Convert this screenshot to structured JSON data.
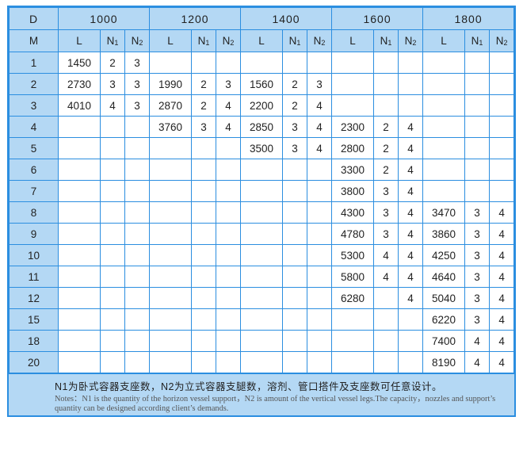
{
  "header": {
    "d_label": "D",
    "m_label": "M",
    "diameters": [
      "1000",
      "1200",
      "1400",
      "1600",
      "1800"
    ],
    "sub_headers": {
      "l": "L",
      "n1": "N",
      "n1_sub": "1",
      "n2": "N",
      "n2_sub": "2"
    }
  },
  "rows": [
    {
      "m": "1",
      "cells": [
        [
          "1450",
          "2",
          "3"
        ],
        [
          "",
          "",
          ""
        ],
        [
          "",
          "",
          ""
        ],
        [
          "",
          "",
          ""
        ],
        [
          "",
          "",
          ""
        ]
      ]
    },
    {
      "m": "2",
      "cells": [
        [
          "2730",
          "3",
          "3"
        ],
        [
          "1990",
          "2",
          "3"
        ],
        [
          "1560",
          "2",
          "3"
        ],
        [
          "",
          "",
          ""
        ],
        [
          "",
          "",
          ""
        ]
      ]
    },
    {
      "m": "3",
      "cells": [
        [
          "4010",
          "4",
          "3"
        ],
        [
          "2870",
          "2",
          "4"
        ],
        [
          "2200",
          "2",
          "4"
        ],
        [
          "",
          "",
          ""
        ],
        [
          "",
          "",
          ""
        ]
      ]
    },
    {
      "m": "4",
      "cells": [
        [
          "",
          "",
          ""
        ],
        [
          "3760",
          "3",
          "4"
        ],
        [
          "2850",
          "3",
          "4"
        ],
        [
          "2300",
          "2",
          "4"
        ],
        [
          "",
          "",
          ""
        ]
      ]
    },
    {
      "m": "5",
      "cells": [
        [
          "",
          "",
          ""
        ],
        [
          "",
          "",
          ""
        ],
        [
          "3500",
          "3",
          "4"
        ],
        [
          "2800",
          "2",
          "4"
        ],
        [
          "",
          "",
          ""
        ]
      ]
    },
    {
      "m": "6",
      "cells": [
        [
          "",
          "",
          ""
        ],
        [
          "",
          "",
          ""
        ],
        [
          "",
          "",
          ""
        ],
        [
          "3300",
          "2",
          "4"
        ],
        [
          "",
          "",
          ""
        ]
      ]
    },
    {
      "m": "7",
      "cells": [
        [
          "",
          "",
          ""
        ],
        [
          "",
          "",
          ""
        ],
        [
          "",
          "",
          ""
        ],
        [
          "3800",
          "3",
          "4"
        ],
        [
          "",
          "",
          ""
        ]
      ]
    },
    {
      "m": "8",
      "cells": [
        [
          "",
          "",
          ""
        ],
        [
          "",
          "",
          ""
        ],
        [
          "",
          "",
          ""
        ],
        [
          "4300",
          "3",
          "4"
        ],
        [
          "3470",
          "3",
          "4"
        ]
      ]
    },
    {
      "m": "9",
      "cells": [
        [
          "",
          "",
          ""
        ],
        [
          "",
          "",
          ""
        ],
        [
          "",
          "",
          ""
        ],
        [
          "4780",
          "3",
          "4"
        ],
        [
          "3860",
          "3",
          "4"
        ]
      ]
    },
    {
      "m": "10",
      "cells": [
        [
          "",
          "",
          ""
        ],
        [
          "",
          "",
          ""
        ],
        [
          "",
          "",
          ""
        ],
        [
          "5300",
          "4",
          "4"
        ],
        [
          "4250",
          "3",
          "4"
        ]
      ]
    },
    {
      "m": "11",
      "cells": [
        [
          "",
          "",
          ""
        ],
        [
          "",
          "",
          ""
        ],
        [
          "",
          "",
          ""
        ],
        [
          "5800",
          "4",
          "4"
        ],
        [
          "4640",
          "3",
          "4"
        ]
      ]
    },
    {
      "m": "12",
      "cells": [
        [
          "",
          "",
          ""
        ],
        [
          "",
          "",
          ""
        ],
        [
          "",
          "",
          ""
        ],
        [
          "6280",
          "",
          "4"
        ],
        [
          "5040",
          "3",
          "4"
        ]
      ]
    },
    {
      "m": "15",
      "cells": [
        [
          "",
          "",
          ""
        ],
        [
          "",
          "",
          ""
        ],
        [
          "",
          "",
          ""
        ],
        [
          "",
          "",
          ""
        ],
        [
          "6220",
          "3",
          "4"
        ]
      ]
    },
    {
      "m": "18",
      "cells": [
        [
          "",
          "",
          ""
        ],
        [
          "",
          "",
          ""
        ],
        [
          "",
          "",
          ""
        ],
        [
          "",
          "",
          ""
        ],
        [
          "7400",
          "4",
          "4"
        ]
      ]
    },
    {
      "m": "20",
      "cells": [
        [
          "",
          "",
          ""
        ],
        [
          "",
          "",
          ""
        ],
        [
          "",
          "",
          ""
        ],
        [
          "",
          "",
          ""
        ],
        [
          "8190",
          "4",
          "4"
        ]
      ]
    }
  ],
  "footer": {
    "chinese_note": "N1为卧式容器支座数，N2为立式容器支腿数，溶剂、管口搭件及支座数可任意设计。",
    "english_note": "Notes：N1 is the quantity of the horizon vessel support，N2 is amount of the vertical vessel legs.The capacity，nozzles and support’s quantity can be designed according client’s demands."
  },
  "colors": {
    "border": "#2b8ee0",
    "header_fill": "#b4d8f4"
  }
}
